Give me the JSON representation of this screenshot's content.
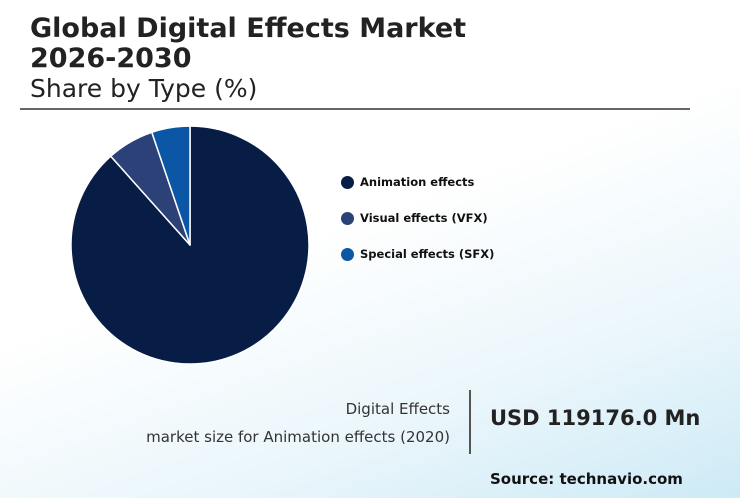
{
  "header": {
    "title_line1": "Global Digital Effects Market",
    "title_line2": "2026-2030",
    "subtitle": "Share by Type (%)"
  },
  "chart_data": {
    "type": "pie",
    "labels": [
      "Animation effects",
      "Visual effects (VFX)",
      "Special effects (SFX)"
    ],
    "values": [
      88.4,
      6.4,
      5.2
    ],
    "colors": [
      "#071d46",
      "#2b4178",
      "#0b57a6"
    ],
    "legend_position": "right"
  },
  "stat": {
    "label_line1": "Digital Effects",
    "label_line2": "market size for Animation effects (2020)",
    "value": "USD 119176.0 Mn"
  },
  "source": "Source: technavio.com"
}
